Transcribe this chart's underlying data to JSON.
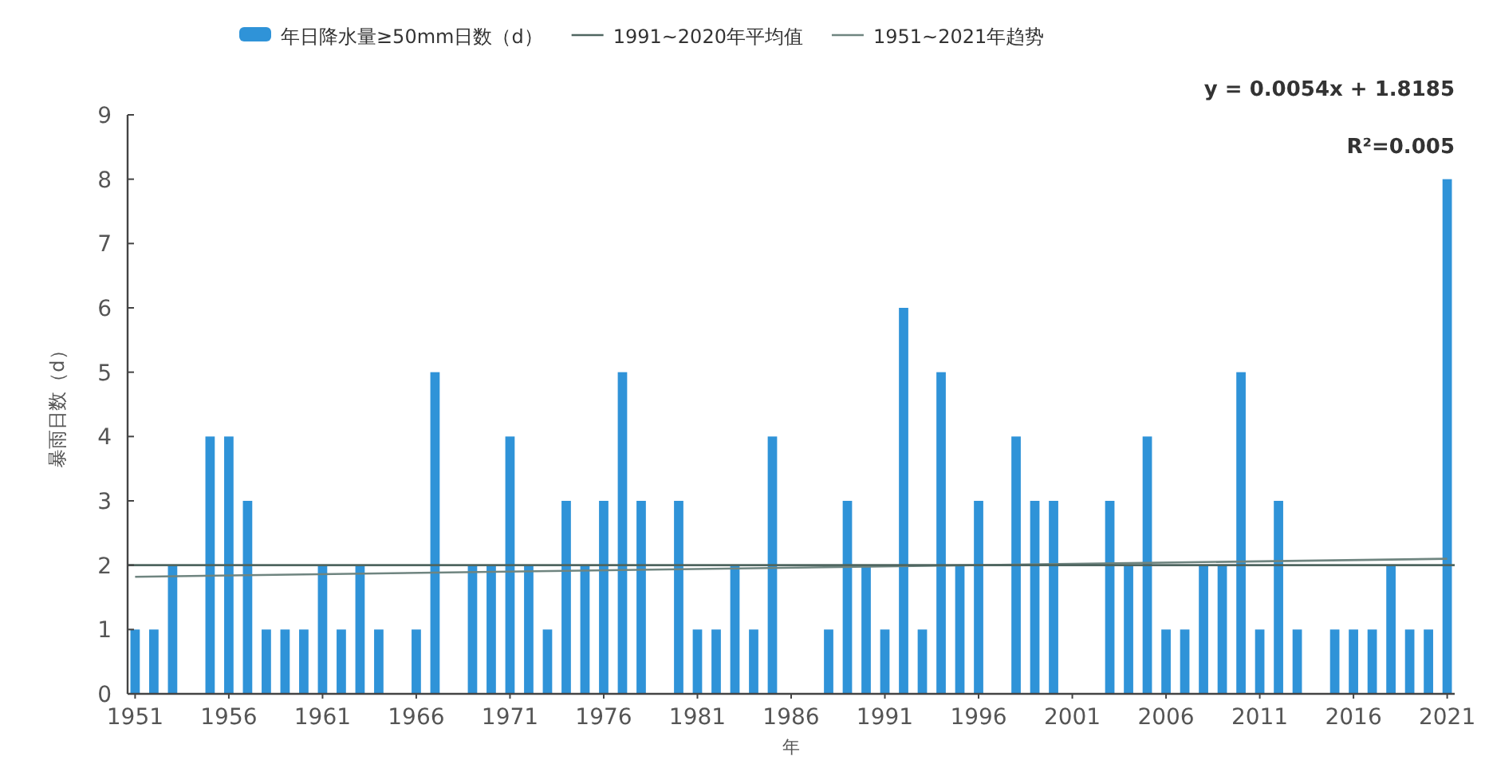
{
  "chart_data": {
    "type": "bar",
    "xlabel": "年",
    "ylabel": "暴雨日数（d）",
    "x": [
      1951,
      1952,
      1953,
      1954,
      1955,
      1956,
      1957,
      1958,
      1959,
      1960,
      1961,
      1962,
      1963,
      1964,
      1965,
      1966,
      1967,
      1968,
      1969,
      1970,
      1971,
      1972,
      1973,
      1974,
      1975,
      1976,
      1977,
      1978,
      1979,
      1980,
      1981,
      1982,
      1983,
      1984,
      1985,
      1986,
      1987,
      1988,
      1989,
      1990,
      1991,
      1992,
      1993,
      1994,
      1995,
      1996,
      1997,
      1998,
      1999,
      2000,
      2001,
      2002,
      2003,
      2004,
      2005,
      2006,
      2007,
      2008,
      2009,
      2010,
      2011,
      2012,
      2013,
      2014,
      2015,
      2016,
      2017,
      2018,
      2019,
      2020,
      2021
    ],
    "series": [
      {
        "name": "年日降水量≥50mm日数（d）",
        "type": "bar",
        "color": "#2f93d8",
        "values": [
          1,
          1,
          2,
          0,
          4,
          4,
          3,
          1,
          1,
          1,
          2,
          1,
          2,
          1,
          0,
          1,
          5,
          0,
          2,
          2,
          4,
          2,
          1,
          3,
          2,
          3,
          5,
          3,
          0,
          3,
          1,
          1,
          2,
          1,
          4,
          0,
          0,
          1,
          3,
          2,
          1,
          6,
          1,
          5,
          2,
          3,
          0,
          4,
          3,
          3,
          0,
          0,
          3,
          2,
          4,
          1,
          1,
          2,
          2,
          5,
          1,
          3,
          1,
          0,
          1,
          1,
          1,
          2,
          1,
          1,
          8
        ]
      },
      {
        "name": "1951~2021年趋势",
        "type": "line",
        "color": "#6f8580",
        "x": [
          1951,
          2021
        ],
        "values": [
          1.82,
          2.1
        ]
      }
    ],
    "ref_lines": [
      {
        "axis": "y",
        "value": 2,
        "label": "1991~2020年平均值",
        "color": "#4f6660"
      }
    ],
    "annotations": [
      "y = 0.0054x + 1.8185",
      "R²=0.005"
    ],
    "xlim": [
      1950.6,
      2021.4
    ],
    "xticks": [
      1951,
      1956,
      1961,
      1966,
      1971,
      1976,
      1981,
      1986,
      1991,
      1996,
      2001,
      2006,
      2011,
      2016,
      2021
    ],
    "ylim": [
      0,
      9
    ],
    "yticks": [
      0,
      1,
      2,
      3,
      4,
      5,
      6,
      7,
      8,
      9
    ],
    "legend": "top",
    "grid": false
  }
}
